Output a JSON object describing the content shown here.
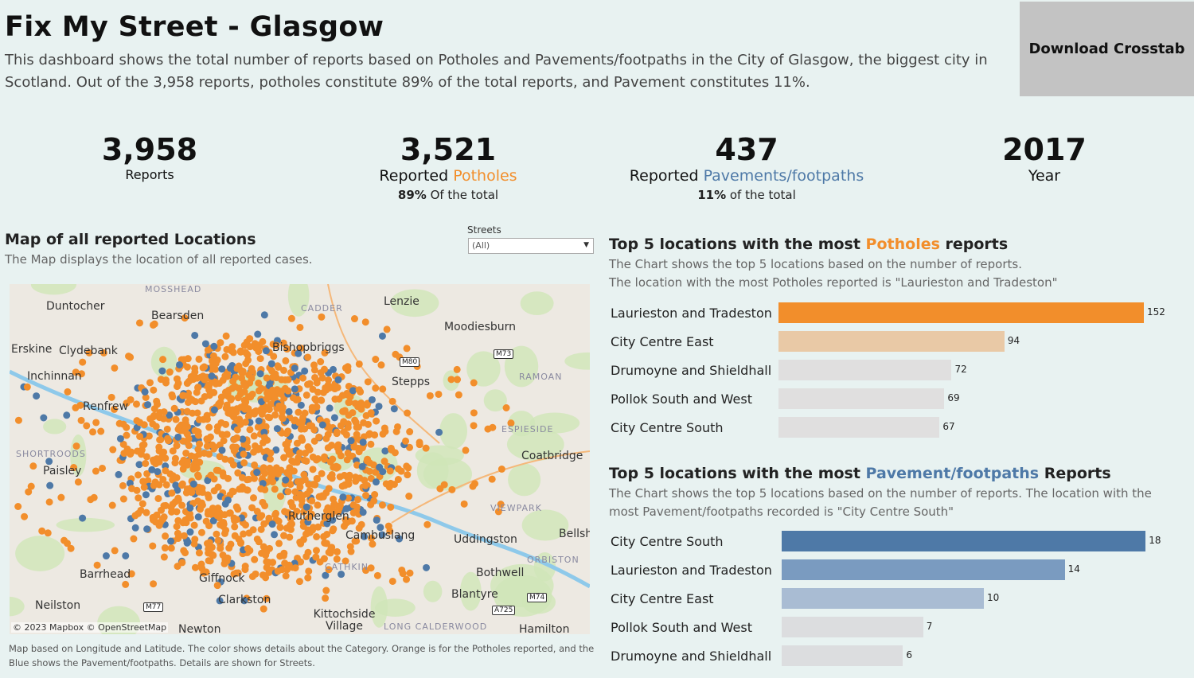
{
  "header": {
    "title": "Fix My Street  -  Glasgow",
    "description": "This dashboard shows the total number of reports based on Potholes and Pavements/footpaths in the City of Glasgow, the biggest city in Scotland. Out of the 3,958 reports, potholes constitute 89% of the total reports, and Pavement constitutes 11%.",
    "download_label": "Download Crosstab"
  },
  "kpis": {
    "reports": {
      "value": "3,958",
      "label": "Reports"
    },
    "potholes": {
      "value": "3,521",
      "label_prefix": "Reported ",
      "label_hl": "Potholes",
      "pct": "89%",
      "pct_suffix": " Of the total"
    },
    "pavements": {
      "value": "437",
      "label_prefix": "Reported ",
      "label_hl": "Pavements/footpaths",
      "pct": "11%",
      "pct_suffix": " of the total"
    },
    "year": {
      "value": "2017",
      "label": "Year"
    }
  },
  "map": {
    "title": "Map of all reported Locations",
    "subtitle": "The Map displays the location of all reported cases.",
    "filter_label": "Streets",
    "filter_value": "(All)",
    "attribution": "© 2023 Mapbox  © OpenStreetMap",
    "note": "Map based on Longitude and Latitude.  The color shows details about the Category. Orange is for the Potholes reported, and the Blue shows the Pavement/footpaths. Details are shown for Streets.",
    "places": [
      "Duntocher",
      "Bearsden",
      "Lenzie",
      "Moodiesburn",
      "Erskine",
      "Clydebank",
      "Bishopbriggs",
      "Inchinnan",
      "Stepps",
      "Renfrew",
      "Paisley",
      "Coatbridge",
      "Rutherglen",
      "Cambuslang",
      "Uddingston",
      "Bellshill",
      "Barrhead",
      "Giffnock",
      "Clarkston",
      "Bothwell",
      "Blantyre",
      "Neilston",
      "Newton",
      "Kittochside Village",
      "Hamilton"
    ],
    "districts": [
      "MOSSHEAD",
      "CADDER",
      "RAMOAN",
      "SHORTROODS",
      "ESPIESIDE",
      "VIEWPARK",
      "ORBISTON",
      "CATHKIN",
      "LONG CALDERWOOD"
    ],
    "roads": [
      "M80",
      "M73",
      "M74",
      "M77",
      "A725"
    ],
    "colors": {
      "pothole": "#f28e2b",
      "pavement": "#4e79a7"
    }
  },
  "potholes_chart": {
    "title_prefix": "Top 5 locations with the most ",
    "title_hl": "Potholes",
    "title_suffix": " reports",
    "desc1": "The Chart shows the top 5  locations based on the number of reports.",
    "desc2": "The location with the most Potholes reported is \"Laurieston and Tradeston\"",
    "rows": [
      {
        "name": "Laurieston and Tradeston",
        "value": 152
      },
      {
        "name": "City Centre East",
        "value": 94
      },
      {
        "name": "Drumoyne and Shieldhall",
        "value": 72
      },
      {
        "name": "Pollok South and West",
        "value": 69
      },
      {
        "name": "City Centre South",
        "value": 67
      }
    ],
    "colors": [
      "#f28e2b",
      "#e9c9a6",
      "#e0dfdf",
      "#e0dfdf",
      "#e0dfdf"
    ]
  },
  "pavement_chart": {
    "title_prefix": "Top 5 locations with the most ",
    "title_hl": "Pavement/footpaths",
    "title_suffix": " Reports",
    "desc": "The Chart shows the top 5  locations based on the number of reports. The  location with the most Pavement/footpaths recorded is \"City Centre South\"",
    "rows": [
      {
        "name": "City Centre South",
        "value": 18
      },
      {
        "name": "Laurieston and Tradeston",
        "value": 14
      },
      {
        "name": "City Centre East",
        "value": 10
      },
      {
        "name": "Pollok South and West",
        "value": 7
      },
      {
        "name": "Drumoyne and Shieldhall",
        "value": 6
      }
    ],
    "colors": [
      "#4e79a7",
      "#7a9bc0",
      "#a9bcd3",
      "#dcdddf",
      "#dcdddf"
    ]
  }
}
